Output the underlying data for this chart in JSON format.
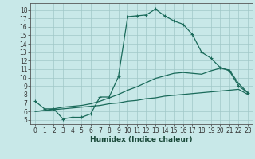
{
  "xlabel": "Humidex (Indice chaleur)",
  "background_color": "#c8e8e8",
  "line_color": "#1a6a5a",
  "xlim": [
    -0.5,
    23.5
  ],
  "ylim": [
    4.5,
    18.8
  ],
  "xticks": [
    0,
    1,
    2,
    3,
    4,
    5,
    6,
    7,
    8,
    9,
    10,
    11,
    12,
    13,
    14,
    15,
    16,
    17,
    18,
    19,
    20,
    21,
    22,
    23
  ],
  "yticks": [
    5,
    6,
    7,
    8,
    9,
    10,
    11,
    12,
    13,
    14,
    15,
    16,
    17,
    18
  ],
  "line1_x": [
    0,
    1,
    2,
    3,
    4,
    5,
    6,
    7,
    8,
    9,
    10,
    11,
    12,
    13,
    14,
    15,
    16,
    17,
    18,
    19,
    20,
    21,
    22,
    23
  ],
  "line1_y": [
    7.2,
    6.3,
    6.3,
    5.1,
    5.3,
    5.3,
    5.7,
    7.7,
    7.7,
    10.1,
    17.2,
    17.3,
    17.4,
    18.1,
    17.3,
    16.7,
    16.3,
    15.1,
    13.0,
    12.3,
    11.2,
    10.8,
    9.0,
    8.2
  ],
  "line2_x": [
    0,
    1,
    2,
    3,
    4,
    5,
    6,
    7,
    8,
    9,
    10,
    11,
    12,
    13,
    14,
    15,
    16,
    17,
    18,
    19,
    20,
    21,
    22,
    23
  ],
  "line2_y": [
    6.0,
    6.1,
    6.2,
    6.3,
    6.4,
    6.5,
    6.6,
    6.7,
    6.9,
    7.0,
    7.2,
    7.3,
    7.5,
    7.6,
    7.8,
    7.9,
    8.0,
    8.1,
    8.2,
    8.3,
    8.4,
    8.5,
    8.6,
    8.0
  ],
  "line3_x": [
    0,
    1,
    2,
    3,
    4,
    5,
    6,
    7,
    8,
    9,
    10,
    11,
    12,
    13,
    14,
    15,
    16,
    17,
    18,
    19,
    20,
    21,
    22,
    23
  ],
  "line3_y": [
    6.0,
    6.1,
    6.3,
    6.5,
    6.6,
    6.7,
    6.9,
    7.2,
    7.6,
    8.0,
    8.5,
    8.9,
    9.4,
    9.9,
    10.2,
    10.5,
    10.6,
    10.5,
    10.4,
    10.8,
    11.1,
    10.9,
    9.3,
    8.2
  ]
}
